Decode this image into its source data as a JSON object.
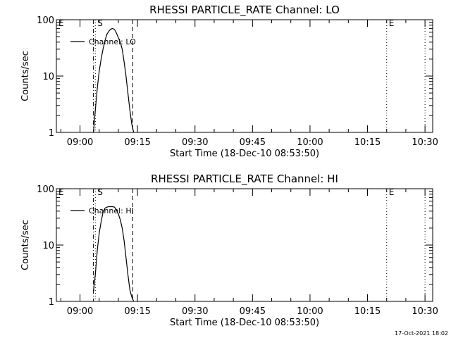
{
  "footer": "17-Oct-2021 18:02",
  "colors": {
    "axes": "#000000",
    "curve": "#000000",
    "background": "#ffffff"
  },
  "chart_data": [
    {
      "type": "line",
      "title": "RHESSI PARTICLE_RATE Channel: LO",
      "xlabel": "Start Time (18-Dec-10 08:53:50)",
      "ylabel": "Counts/sec",
      "yscale": "log",
      "ylim": [
        1,
        100
      ],
      "xlim": [
        "08:53:50",
        "10:32:00"
      ],
      "x_ticks": [
        "09:00",
        "09:15",
        "09:30",
        "09:45",
        "10:00",
        "10:15",
        "10:30"
      ],
      "y_ticks": [
        "1",
        "10",
        "100"
      ],
      "grid": false,
      "legend": {
        "position": "top-left",
        "entries": [
          "Channel: LO"
        ]
      },
      "series": [
        {
          "name": "Channel: LO",
          "x": [
            "09:03:30",
            "09:04:00",
            "09:04:30",
            "09:05:00",
            "09:05:30",
            "09:06:00",
            "09:06:30",
            "09:07:00",
            "09:07:30",
            "09:08:00",
            "09:08:30",
            "09:09:00",
            "09:09:30",
            "09:10:00",
            "09:10:30",
            "09:11:00",
            "09:11:30",
            "09:12:00",
            "09:12:30",
            "09:13:00",
            "09:13:30",
            "09:14:00"
          ],
          "values": [
            1,
            2.5,
            6,
            12,
            20,
            30,
            42,
            55,
            62,
            68,
            70,
            67,
            58,
            48,
            40,
            30,
            18,
            10,
            5,
            2.5,
            1.4,
            1
          ]
        }
      ],
      "markers": [
        {
          "time": "08:53:50",
          "label": "E",
          "style": "dotted"
        },
        {
          "time": "09:03:30",
          "label": "",
          "style": "dash-dot"
        },
        {
          "time": "09:04:00",
          "label": "S",
          "style": "dotted"
        },
        {
          "time": "09:13:45",
          "label": "",
          "style": "dashed"
        },
        {
          "time": "10:20:00",
          "label": "E",
          "style": "dotted"
        },
        {
          "time": "10:30:00",
          "label": "",
          "style": "dotted"
        }
      ]
    },
    {
      "type": "line",
      "title": "RHESSI PARTICLE_RATE Channel: HI",
      "xlabel": "Start Time (18-Dec-10 08:53:50)",
      "ylabel": "Counts/sec",
      "yscale": "log",
      "ylim": [
        1,
        100
      ],
      "xlim": [
        "08:53:50",
        "10:32:00"
      ],
      "x_ticks": [
        "09:00",
        "09:15",
        "09:30",
        "09:45",
        "10:00",
        "10:15",
        "10:30"
      ],
      "y_ticks": [
        "1",
        "10",
        "100"
      ],
      "grid": false,
      "legend": {
        "position": "top-left",
        "entries": [
          "Channel: HI"
        ]
      },
      "series": [
        {
          "name": "Channel: HI",
          "x": [
            "09:03:30",
            "09:04:00",
            "09:04:30",
            "09:05:00",
            "09:05:30",
            "09:06:00",
            "09:06:30",
            "09:07:00",
            "09:07:30",
            "09:08:00",
            "09:08:30",
            "09:09:00",
            "09:09:30",
            "09:10:00",
            "09:10:30",
            "09:11:00",
            "09:11:30",
            "09:12:00",
            "09:12:30",
            "09:13:00",
            "09:13:30",
            "09:14:00"
          ],
          "values": [
            1.5,
            3,
            8,
            16,
            26,
            38,
            45,
            47,
            48,
            48,
            48,
            47,
            42,
            36,
            28,
            20,
            12,
            6,
            3,
            1.6,
            1.2,
            1
          ]
        }
      ],
      "markers": [
        {
          "time": "08:53:50",
          "label": "E",
          "style": "dotted"
        },
        {
          "time": "09:03:30",
          "label": "",
          "style": "dash-dot"
        },
        {
          "time": "09:04:00",
          "label": "S",
          "style": "dotted"
        },
        {
          "time": "09:13:45",
          "label": "",
          "style": "dashed"
        },
        {
          "time": "10:20:00",
          "label": "E",
          "style": "dotted"
        },
        {
          "time": "10:30:00",
          "label": "",
          "style": "dotted"
        }
      ]
    }
  ]
}
